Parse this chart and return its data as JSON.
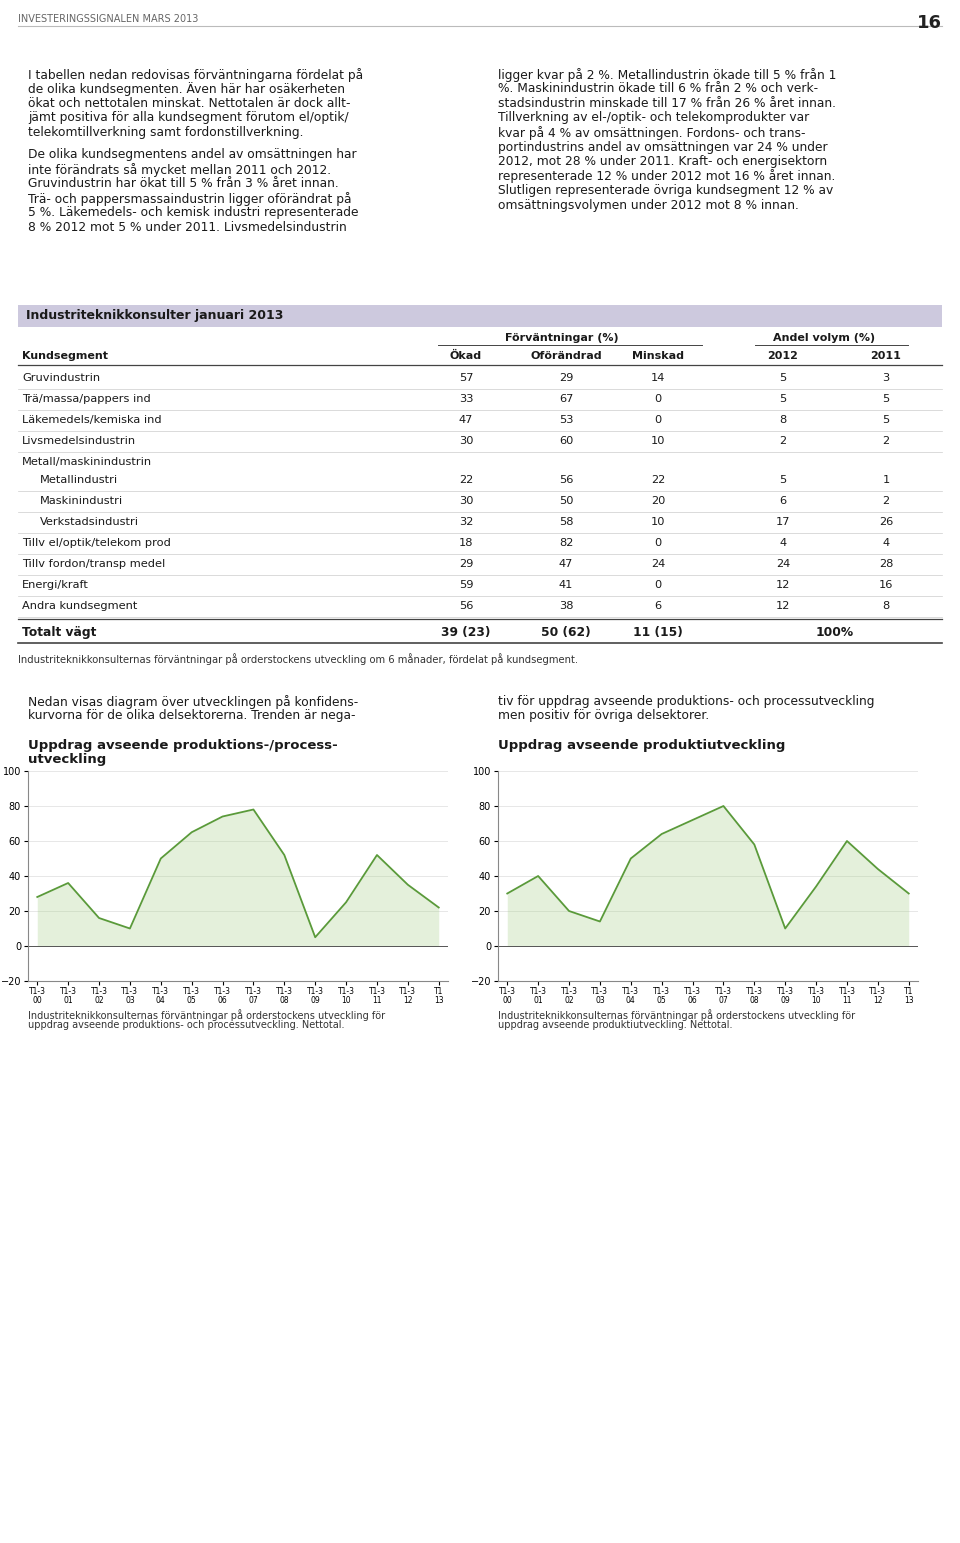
{
  "header_text": "INVESTERINGSSIGNALEN MARS 2013",
  "page_number": "16",
  "body_left_col_lines": [
    "I tabellen nedan redovisas förväntningarna fördelat på",
    "de olika kundsegmenten. Även här har osäkerheten",
    "ökat och nettotalen minskat. Nettotalen är dock allt-",
    "jämt positiva för alla kundsegment förutom el/optik/",
    "telekomtillverkning samt fordonstillverkning.",
    "",
    "De olika kundsegmentens andel av omsättningen har",
    "inte förändrats så mycket mellan 2011 och 2012.",
    "Gruvindustrin har ökat till 5 % från 3 % året innan.",
    "Trä- och pappersmassaindustrin ligger oförändrat på",
    "5 %. Läkemedels- och kemisk industri representerade",
    "8 % 2012 mot 5 % under 2011. Livsmedelsindustrin"
  ],
  "body_right_col_lines": [
    "ligger kvar på 2 %. Metallindustrin ökade till 5 % från 1",
    "%. Maskinindustrin ökade till 6 % från 2 % och verk-",
    "stadsindustrin minskade till 17 % från 26 % året innan.",
    "Tillverkning av el-/optik- och telekomprodukter var",
    "kvar på 4 % av omsättningen. Fordons- och trans-",
    "portindustrins andel av omsättningen var 24 % under",
    "2012, mot 28 % under 2011. Kraft- och energisektorn",
    "representerade 12 % under 2012 mot 16 % året innan.",
    "Slutligen representerade övriga kundsegment 12 % av",
    "omsättningsvolymen under 2012 mot 8 % innan."
  ],
  "table_title": "Industriteknikkonsulter januari 2013",
  "table_header_group1": "Förväntningar (%)",
  "table_header_group2": "Andel volym (%)",
  "table_col_headers": [
    "Kundsegment",
    "Ökad",
    "Oförändrad",
    "Minskad",
    "2012",
    "2011"
  ],
  "table_rows": [
    {
      "name": "Gruvindustrin",
      "okad": "57",
      "oforandrad": "29",
      "minskad": "14",
      "andel2012": "5",
      "andel2011": "3",
      "indent": false,
      "subheader": false
    },
    {
      "name": "Trä/massa/pappers ind",
      "okad": "33",
      "oforandrad": "67",
      "minskad": "0",
      "andel2012": "5",
      "andel2011": "5",
      "indent": false,
      "subheader": false
    },
    {
      "name": "Läkemedels/kemiska ind",
      "okad": "47",
      "oforandrad": "53",
      "minskad": "0",
      "andel2012": "8",
      "andel2011": "5",
      "indent": false,
      "subheader": false
    },
    {
      "name": "Livsmedelsindustrin",
      "okad": "30",
      "oforandrad": "60",
      "minskad": "10",
      "andel2012": "2",
      "andel2011": "2",
      "indent": false,
      "subheader": false
    },
    {
      "name": "Metall/maskinindustrin",
      "okad": "",
      "oforandrad": "",
      "minskad": "",
      "andel2012": "",
      "andel2011": "",
      "indent": false,
      "subheader": true
    },
    {
      "name": "Metallindustri",
      "okad": "22",
      "oforandrad": "56",
      "minskad": "22",
      "andel2012": "5",
      "andel2011": "1",
      "indent": true,
      "subheader": false
    },
    {
      "name": "Maskinindustri",
      "okad": "30",
      "oforandrad": "50",
      "minskad": "20",
      "andel2012": "6",
      "andel2011": "2",
      "indent": true,
      "subheader": false
    },
    {
      "name": "Verkstadsindustri",
      "okad": "32",
      "oforandrad": "58",
      "minskad": "10",
      "andel2012": "17",
      "andel2011": "26",
      "indent": true,
      "subheader": false
    },
    {
      "name": "Tillv el/optik/telekom prod",
      "okad": "18",
      "oforandrad": "82",
      "minskad": "0",
      "andel2012": "4",
      "andel2011": "4",
      "indent": false,
      "subheader": false
    },
    {
      "name": "Tillv fordon/transp medel",
      "okad": "29",
      "oforandrad": "47",
      "minskad": "24",
      "andel2012": "24",
      "andel2011": "28",
      "indent": false,
      "subheader": false
    },
    {
      "name": "Energi/kraft",
      "okad": "59",
      "oforandrad": "41",
      "minskad": "0",
      "andel2012": "12",
      "andel2011": "16",
      "indent": false,
      "subheader": false
    },
    {
      "name": "Andra kundsegment",
      "okad": "56",
      "oforandrad": "38",
      "minskad": "6",
      "andel2012": "12",
      "andel2011": "8",
      "indent": false,
      "subheader": false
    }
  ],
  "table_total": {
    "name": "Totalt vägt",
    "okad": "39 (23)",
    "oforandrad": "50 (62)",
    "minskad": "11 (15)",
    "andel": "100%"
  },
  "table_footnote": "Industriteknikkonsulternas förväntningar på orderstockens utveckling om 6 månader, fördelat på kundsegment.",
  "section2_left_lines": [
    "Nedan visas diagram över utvecklingen på konfidens-",
    "kurvorna för de olika delsektorerna. Trenden är nega-"
  ],
  "section2_right_lines": [
    "tiv för uppdrag avseende produktions- och processutveckling",
    "men positiv för övriga delsektorer."
  ],
  "chart1_title_line1": "Uppdrag avseende produktions-/process-",
  "chart1_title_line2": "utveckling",
  "chart2_title": "Uppdrag avseende produktiutveckling",
  "chart_footnote1_lines": [
    "Industriteknikkonsulternas förväntningar på orderstockens utveckling för",
    "uppdrag avseende produktions- och processutveckling. Nettotal."
  ],
  "chart_footnote2_lines": [
    "Industriteknikkonsulternas förväntningar på orderstockens utveckling för",
    "uppdrag avseende produktiutveckling. Nettotal."
  ],
  "chart_ylim": [
    -20,
    100
  ],
  "chart_yticks": [
    -20,
    0,
    20,
    40,
    60,
    80,
    100
  ],
  "chart_xtick_labels": [
    "T1-3\n00",
    "T1-3\n01",
    "T1-3\n02",
    "T1-3\n03",
    "T1-3\n04",
    "T1-3\n05",
    "T1-3\n06",
    "T1-3\n07",
    "T1-3\n08",
    "T1-3\n09",
    "T1-3\n10",
    "T1-3\n11",
    "T1-3\n12",
    "T1\n13"
  ],
  "chart1_data": [
    28,
    36,
    16,
    10,
    50,
    65,
    74,
    78,
    52,
    5,
    25,
    52,
    35,
    22
  ],
  "chart2_data": [
    30,
    40,
    20,
    14,
    50,
    64,
    72,
    80,
    58,
    10,
    34,
    60,
    44,
    30
  ],
  "line_color": "#5a9a3a",
  "fill_color": "#a8d08a",
  "background_color": "#ffffff",
  "table_header_bg": "#cdc9de",
  "text_color": "#1a1a1a",
  "header_color": "#666666"
}
